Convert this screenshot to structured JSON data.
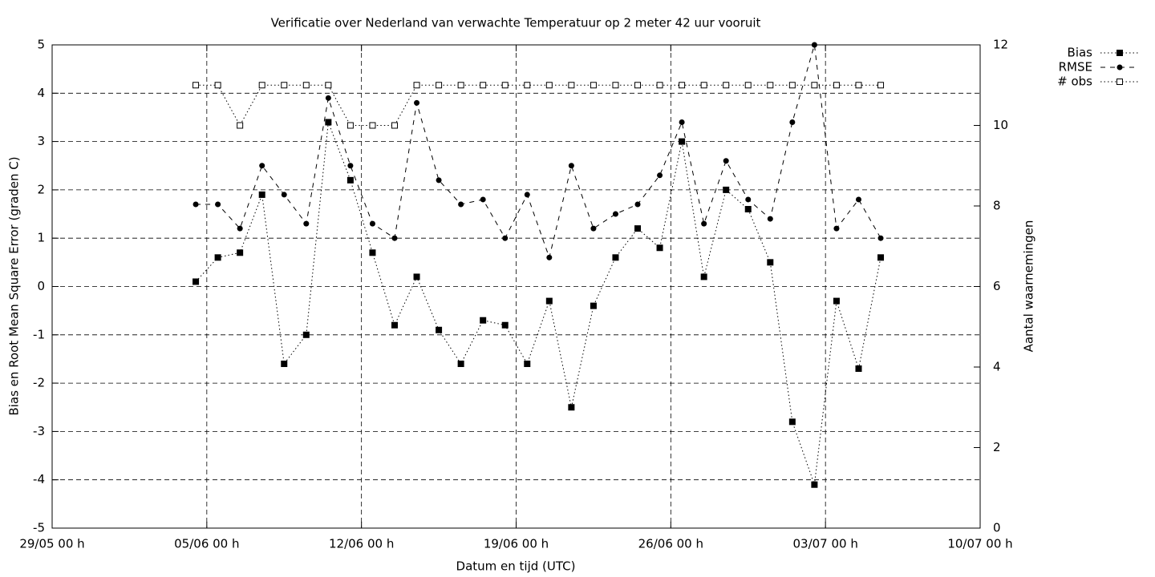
{
  "chart_data": {
    "type": "line",
    "title": "Verificatie over Nederland van verwachte Temperatuur op 2 meter 42 uur vooruit",
    "x_label": "Datum en tijd (UTC)",
    "y_label": "Bias en Root Mean Square Error (graden C)",
    "y2_label": "Aantal waarnemingen",
    "x": [
      "04/06 12 h",
      "05/06 12 h",
      "06/06 12 h",
      "07/06 12 h",
      "08/06 12 h",
      "09/06 12 h",
      "10/06 12 h",
      "11/06 12 h",
      "12/06 12 h",
      "13/06 12 h",
      "14/06 12 h",
      "15/06 12 h",
      "16/06 12 h",
      "17/06 12 h",
      "18/06 12 h",
      "19/06 12 h",
      "20/06 12 h",
      "21/06 12 h",
      "22/06 12 h",
      "23/06 12 h",
      "24/06 12 h",
      "25/06 12 h",
      "26/06 12 h",
      "27/06 12 h",
      "28/06 12 h",
      "29/06 12 h",
      "30/06 12 h",
      "01/07 12 h",
      "02/07 12 h",
      "03/07 12 h",
      "04/07 12 h",
      "05/07 12 h"
    ],
    "xlim": [
      "29/05 00 h",
      "10/07 00 h"
    ],
    "xticks": [
      "29/05 00 h",
      "05/06 00 h",
      "12/06 00 h",
      "19/06 00 h",
      "26/06 00 h",
      "03/07 00 h",
      "10/07 00 h"
    ],
    "ylim": [
      -5,
      5
    ],
    "yticks": [
      -5,
      -4,
      -3,
      -2,
      -1,
      0,
      1,
      2,
      3,
      4,
      5
    ],
    "y2lim": [
      0,
      12
    ],
    "y2ticks": [
      0,
      2,
      4,
      6,
      8,
      10,
      12
    ],
    "grid": true,
    "legend": "top-right-outside",
    "series": [
      {
        "name": "Bias",
        "color": "#000000",
        "line": "dotted",
        "marker": "square-filled",
        "values": [
          0.1,
          0.6,
          0.7,
          1.9,
          -1.6,
          -1.0,
          3.4,
          2.2,
          0.7,
          -0.8,
          0.2,
          -0.9,
          -1.6,
          -0.7,
          -0.8,
          -1.6,
          -0.3,
          -2.5,
          -0.4,
          0.6,
          1.2,
          0.8,
          3.0,
          0.2,
          2.0,
          1.6,
          0.5,
          -2.8,
          -4.1,
          -0.3,
          -1.7,
          0.6
        ]
      },
      {
        "name": "RMSE",
        "color": "#000000",
        "line": "dashed",
        "marker": "circle-filled",
        "values": [
          1.7,
          1.7,
          1.2,
          2.5,
          1.9,
          1.3,
          3.9,
          2.5,
          1.3,
          1.0,
          3.8,
          2.2,
          1.7,
          1.8,
          1.0,
          1.9,
          0.6,
          2.5,
          1.2,
          1.5,
          1.7,
          2.3,
          3.4,
          1.3,
          2.6,
          1.8,
          1.4,
          3.4,
          5.0,
          1.2,
          1.8,
          1.0
        ]
      },
      {
        "name": "# obs",
        "color": "#000000",
        "line": "dotted",
        "marker": "square-open",
        "axis": "y2",
        "values": [
          11,
          11,
          10,
          11,
          11,
          11,
          11,
          10,
          10,
          10,
          11,
          11,
          11,
          11,
          11,
          11,
          11,
          11,
          11,
          11,
          11,
          11,
          11,
          11,
          11,
          11,
          11,
          11,
          11,
          11,
          11,
          11
        ]
      }
    ]
  }
}
